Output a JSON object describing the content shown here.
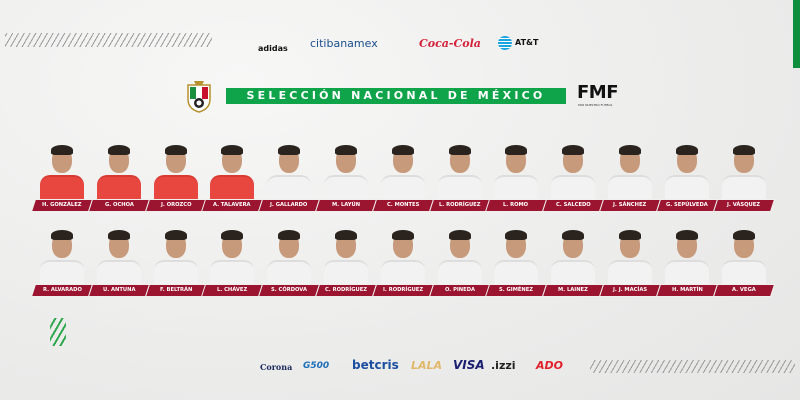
{
  "title": "SELECCIÓN NACIONAL DE MÉXICO",
  "federation": {
    "name": "FMF",
    "subtitle": "POR NUESTRO FÚTBOL"
  },
  "top_sponsors": [
    "adidas",
    "citibanamex",
    "Coca-Cola",
    "AT&T"
  ],
  "bottom_sponsors": [
    "Corona",
    "G500",
    "betcris",
    "LALA",
    "VISA",
    ".izzi",
    "ADO"
  ],
  "colors": {
    "green": "#10a44a",
    "label_red": "#9b1530",
    "goalkeeper_kit": "#e8473f",
    "background": "#efefee"
  },
  "row1": [
    {
      "name": "H. GONZÁLEZ",
      "gk": true
    },
    {
      "name": "G. OCHOA",
      "gk": true
    },
    {
      "name": "J. OROZCO",
      "gk": true
    },
    {
      "name": "A. TALAVERA",
      "gk": true
    },
    {
      "name": "J. GALLARDO"
    },
    {
      "name": "M. LAYÚN"
    },
    {
      "name": "C. MONTES"
    },
    {
      "name": "L. RODRÍGUEZ"
    },
    {
      "name": "L. ROMO"
    },
    {
      "name": "C. SALCEDO"
    },
    {
      "name": "J. SÁNCHEZ"
    },
    {
      "name": "G. SEPÚLVEDA"
    },
    {
      "name": "J. VÁSQUEZ"
    }
  ],
  "row2": [
    {
      "name": "R. ALVARADO"
    },
    {
      "name": "U. ANTUNA"
    },
    {
      "name": "F. BELTRÁN"
    },
    {
      "name": "L. CHÁVEZ"
    },
    {
      "name": "S. CÓRDOVA"
    },
    {
      "name": "C. RODRÍGUEZ"
    },
    {
      "name": "I. RODRÍGUEZ"
    },
    {
      "name": "O. PINEDA"
    },
    {
      "name": "S. GIMÉNEZ"
    },
    {
      "name": "M. LAINEZ"
    },
    {
      "name": "J. J. MACÍAS"
    },
    {
      "name": "H. MARTÍN"
    },
    {
      "name": "A. VEGA"
    }
  ]
}
